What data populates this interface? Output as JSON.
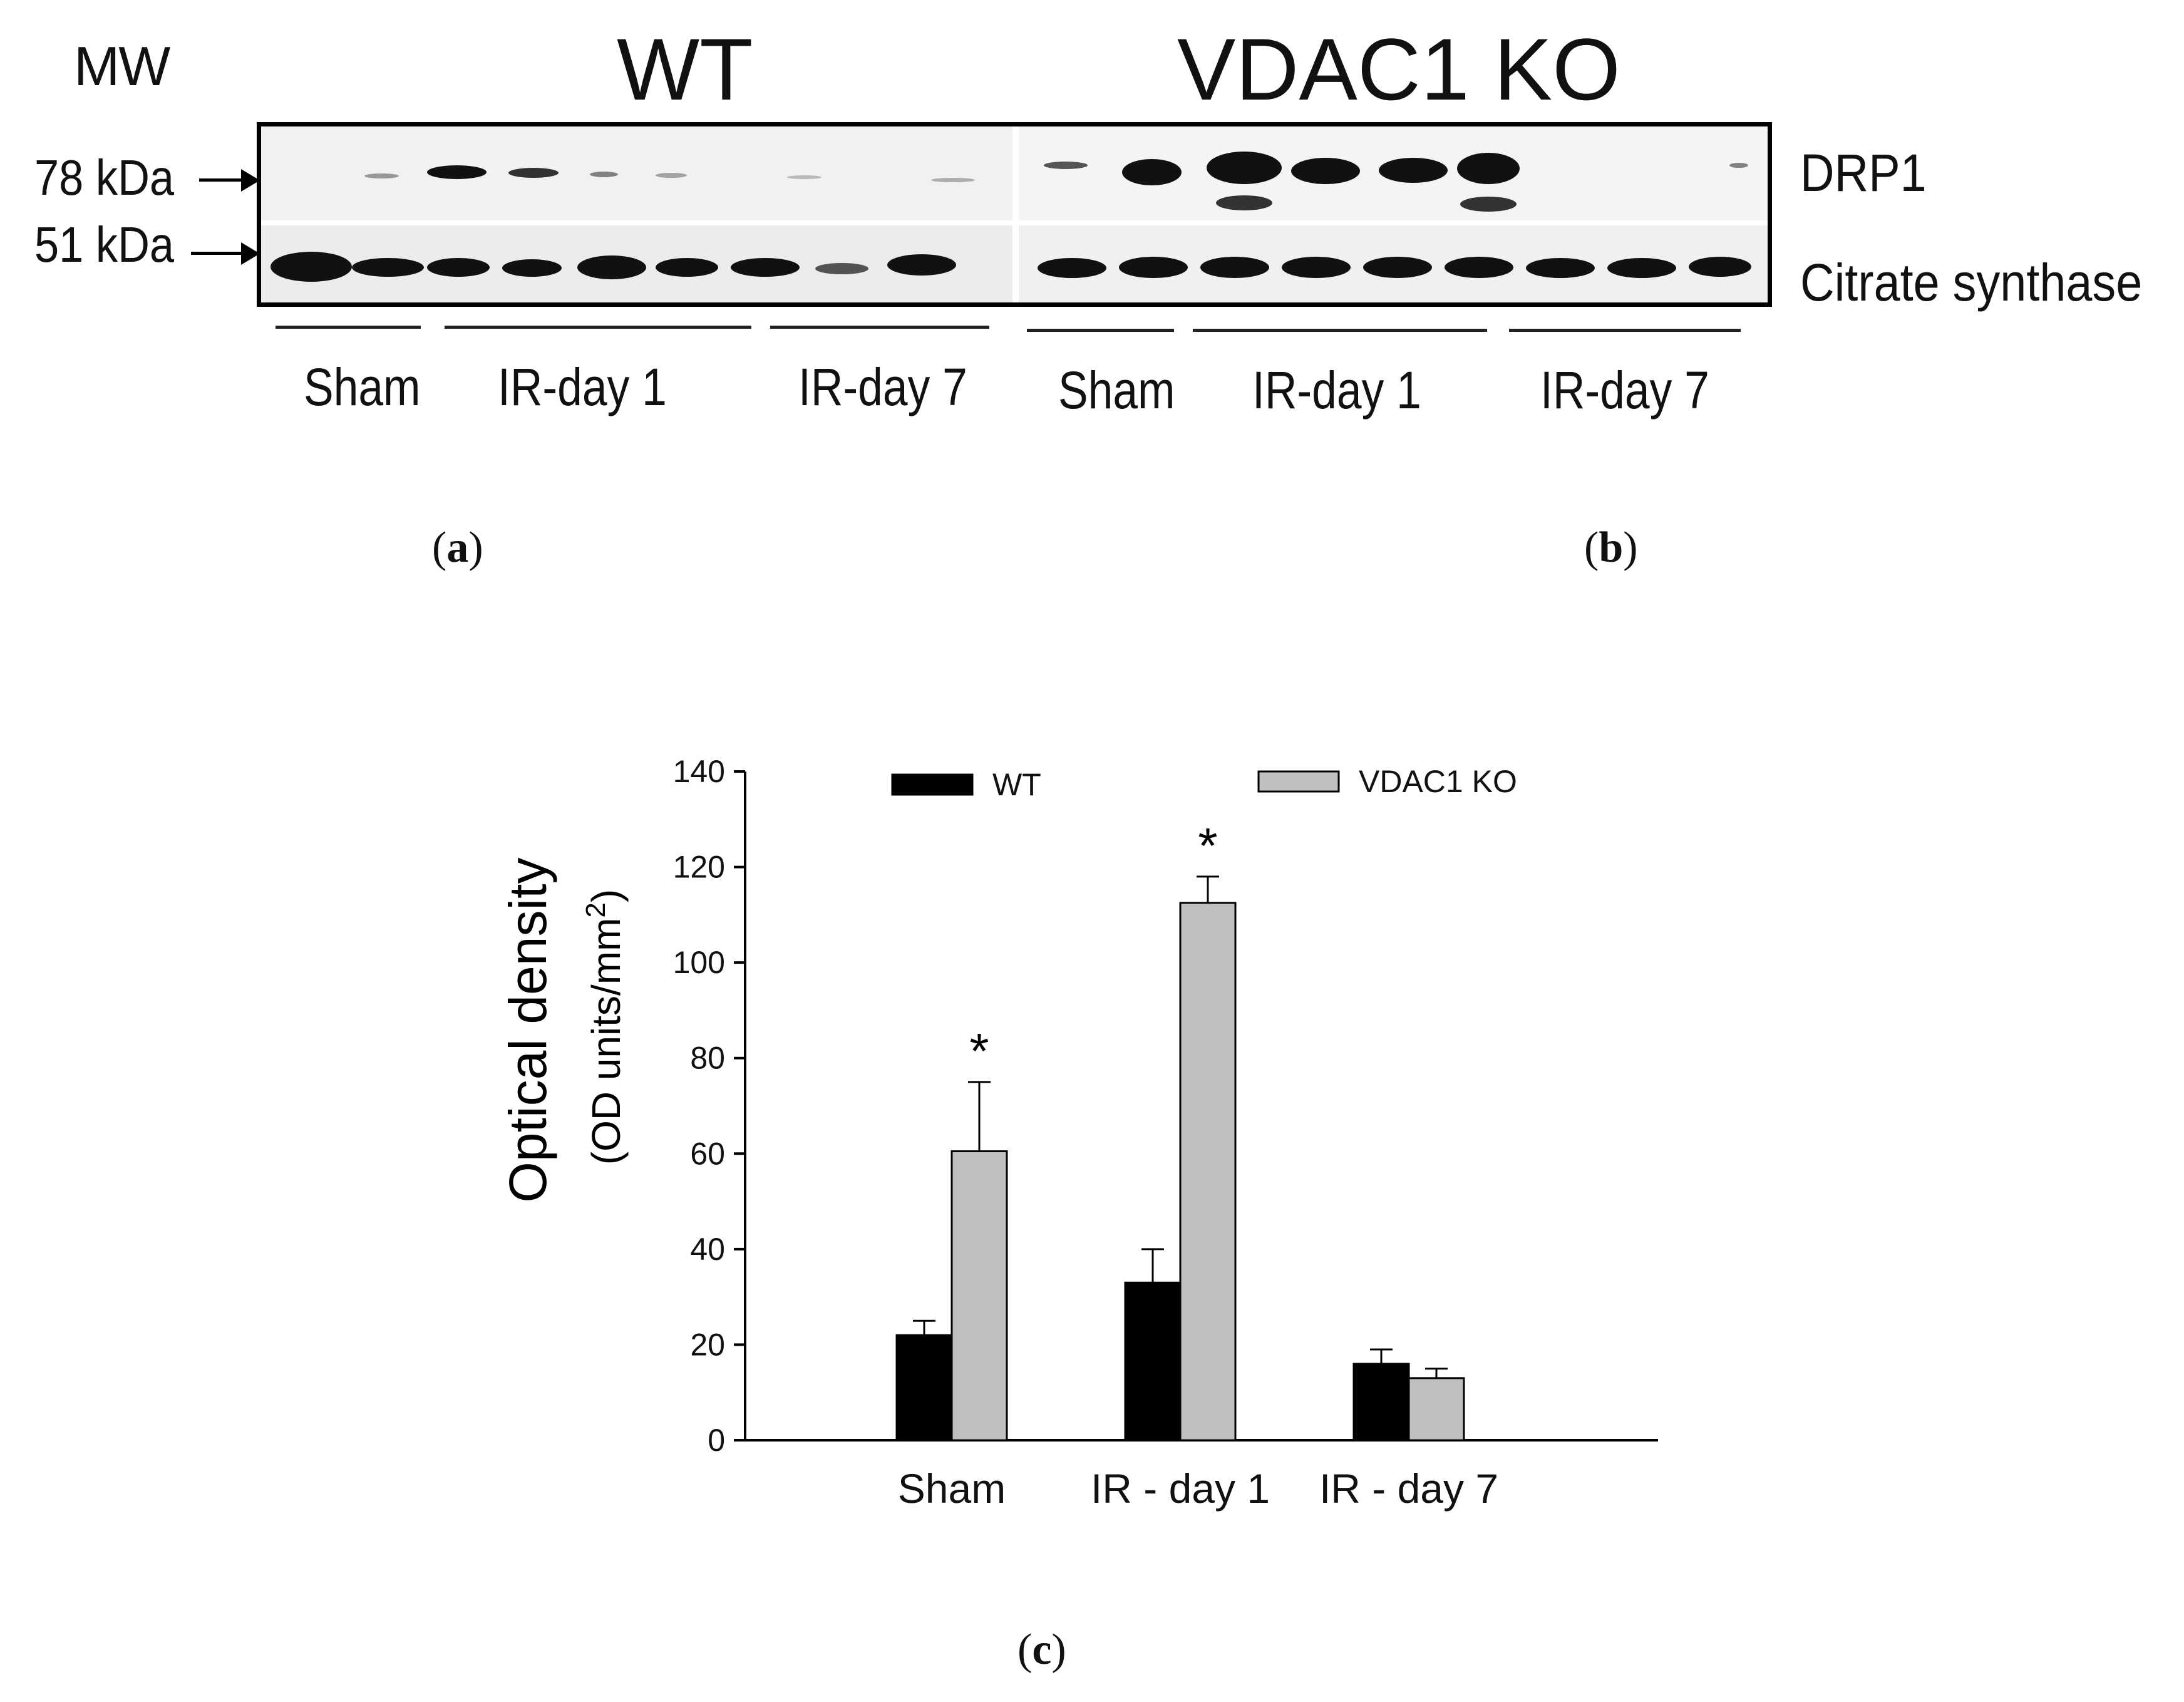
{
  "panel_a": {
    "mw_label": "MW",
    "wt_title": "WT",
    "ko_title": "VDAC1 KO",
    "marker_78": "78 kDa",
    "marker_51": "51 kDa",
    "row_drp1": "DRP1",
    "row_cs": "Citrate synthase",
    "groups_wt": [
      "Sham",
      "IR-day 1",
      "IR-day 7"
    ],
    "groups_ko": [
      "Sham",
      "IR-day 1",
      "IR-day 7"
    ]
  },
  "captions": {
    "a": "a",
    "b": "b",
    "c": "c"
  },
  "chart_data": {
    "type": "bar",
    "categories": [
      "Sham",
      "IR - day 1",
      "IR - day 7"
    ],
    "series": [
      {
        "name": "WT",
        "color": "#000000",
        "values": [
          22,
          33,
          16
        ],
        "errors": [
          3,
          7,
          3
        ]
      },
      {
        "name": "VDAC1 KO",
        "color": "#c0c0c0",
        "values": [
          60.5,
          112.5,
          13
        ],
        "errors": [
          14.5,
          5.5,
          2
        ]
      }
    ],
    "ylabel_line1": "Optical density",
    "ylabel_line2": "(OD units/mm",
    "ylabel_sup": "2",
    "ylabel_close": ")",
    "ylim": [
      0,
      140
    ],
    "yticks": [
      0,
      20,
      40,
      60,
      80,
      100,
      120,
      140
    ],
    "significance": [
      {
        "category": "Sham",
        "series": "VDAC1 KO",
        "mark": "*"
      },
      {
        "category": "IR - day 1",
        "series": "VDAC1 KO",
        "mark": "*"
      }
    ],
    "legend_position": "top"
  }
}
